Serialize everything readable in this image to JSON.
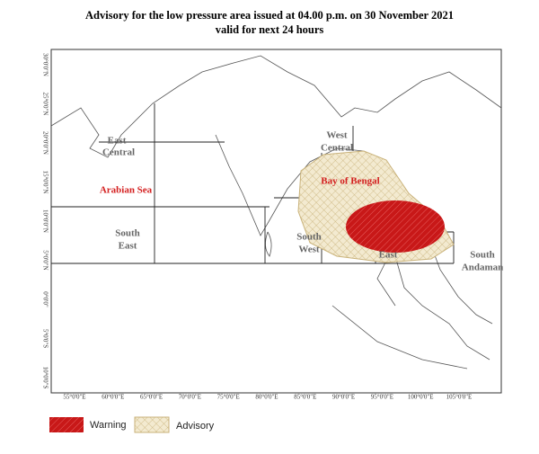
{
  "header": {
    "title": "Advisory for the low pressure area  issued at 04.00 p.m. on 30 November 2021",
    "subtitle": "valid for next 24 hours"
  },
  "map": {
    "lat_labels": [
      "30°0'0\"N",
      "25°0'0\"N",
      "20°0'0\"N",
      "15°0'0\"N",
      "10°0'0\"N",
      "5°0'0\"N",
      "0°0'0\"",
      "5°0'0\"S",
      "10°0'0\"S"
    ],
    "lon_labels": [
      "55°0'0\"E",
      "60°0'0\"E",
      "65°0'0\"E",
      "70°0'0\"E",
      "75°0'0\"E",
      "80°0'0\"E",
      "85°0'0\"E",
      "90°0'0\"E",
      "95°0'0\"E",
      "100°0'0\"E",
      "105°0'0\"E"
    ],
    "regions": [
      {
        "label": [
          "East",
          "Central"
        ]
      },
      {
        "label": [
          "Arabian Sea"
        ]
      },
      {
        "label": [
          "South",
          "East"
        ]
      },
      {
        "label": [
          "West",
          "Central"
        ]
      },
      {
        "label": [
          "Bay of Bengal"
        ]
      },
      {
        "label": [
          "South",
          "West"
        ]
      },
      {
        "label": [
          "East"
        ]
      },
      {
        "label": [
          "South",
          "Andaman"
        ]
      }
    ]
  },
  "legend": {
    "items": [
      "Warning",
      "Advisory"
    ]
  }
}
